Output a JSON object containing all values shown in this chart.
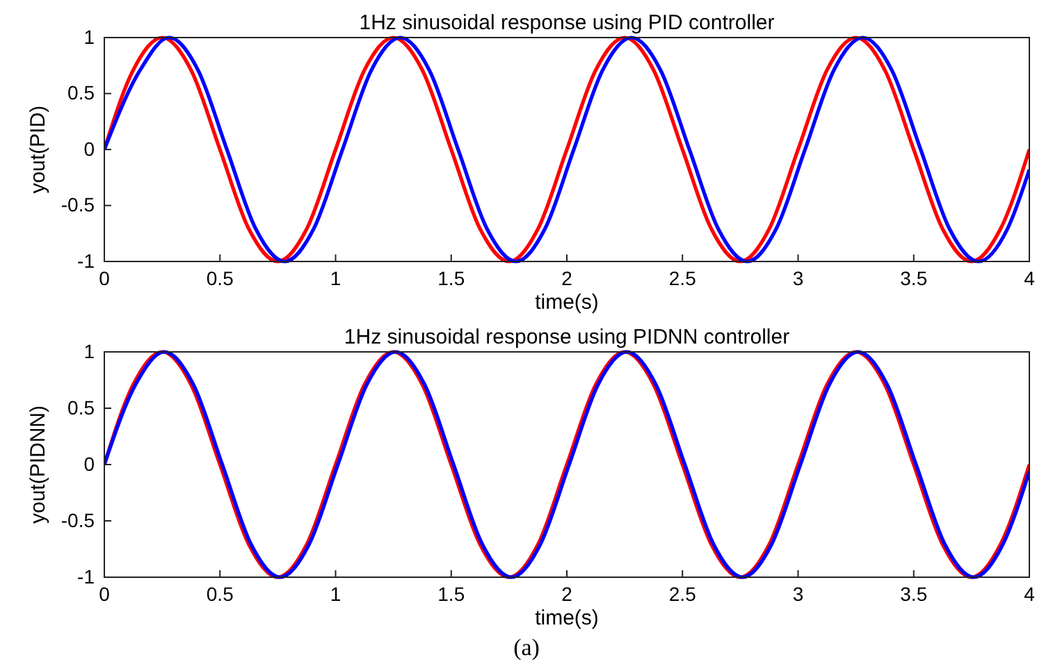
{
  "chart_data": [
    {
      "type": "line",
      "title": "1Hz sinusoidal response using PID controller",
      "xlabel": "time(s)",
      "ylabel": "yout(PID)",
      "xlim": [
        0,
        4
      ],
      "xticks": [
        0,
        0.5,
        1,
        1.5,
        2,
        2.5,
        3,
        3.5,
        4
      ],
      "ylim": [
        -1,
        1
      ],
      "yticks": [
        -1,
        -0.5,
        0,
        0.5,
        1
      ],
      "grid": false,
      "line_style": "solid",
      "marker": "none",
      "series": [
        {
          "color": "#ff0000",
          "x": [
            0,
            0.125,
            0.25,
            0.375,
            0.5,
            0.625,
            0.75,
            0.875,
            1,
            1.125,
            1.25,
            1.375,
            1.5,
            1.625,
            1.75,
            1.875,
            2,
            2.125,
            2.25,
            2.375,
            2.5,
            2.625,
            2.75,
            2.875,
            3,
            3.125,
            3.25,
            3.375,
            3.5,
            3.625,
            3.75,
            3.875,
            4
          ],
          "values": [
            0,
            0.71,
            1,
            0.71,
            0,
            -0.71,
            -1,
            -0.71,
            0,
            0.71,
            1,
            0.71,
            0,
            -0.71,
            -1,
            -0.71,
            0,
            0.71,
            1,
            0.71,
            0,
            -0.71,
            -1,
            -0.71,
            0,
            0.71,
            1,
            0.71,
            0,
            -0.71,
            -1,
            -0.71,
            0
          ]
        },
        {
          "color": "#0000ff",
          "x": [
            0,
            0.155,
            0.28,
            0.405,
            0.53,
            0.655,
            0.78,
            0.905,
            1.03,
            1.155,
            1.28,
            1.405,
            1.53,
            1.655,
            1.78,
            1.905,
            2.03,
            2.155,
            2.28,
            2.405,
            2.53,
            2.655,
            2.78,
            2.905,
            3.03,
            3.155,
            3.28,
            3.405,
            3.53,
            3.655,
            3.78,
            3.905,
            4
          ],
          "values": [
            0,
            0.71,
            1,
            0.71,
            0,
            -0.71,
            -1,
            -0.71,
            0,
            0.71,
            1,
            0.71,
            0,
            -0.71,
            -1,
            -0.71,
            0,
            0.71,
            1,
            0.71,
            0,
            -0.71,
            -1,
            -0.71,
            0,
            0.71,
            1,
            0.71,
            0,
            -0.71,
            -1,
            -0.71,
            -0.18
          ]
        }
      ]
    },
    {
      "type": "line",
      "title": "1Hz sinusoidal response using PIDNN controller",
      "xlabel": "time(s)",
      "ylabel": "yout(PIDNN)",
      "xlim": [
        0,
        4
      ],
      "xticks": [
        0,
        0.5,
        1,
        1.5,
        2,
        2.5,
        3,
        3.5,
        4
      ],
      "ylim": [
        -1,
        1
      ],
      "yticks": [
        -1,
        -0.5,
        0,
        0.5,
        1
      ],
      "grid": false,
      "line_style": "solid",
      "marker": "none",
      "annotations": [
        "(a)"
      ],
      "series": [
        {
          "color": "#ff0000",
          "x": [
            0,
            0.125,
            0.25,
            0.375,
            0.5,
            0.625,
            0.75,
            0.875,
            1,
            1.125,
            1.25,
            1.375,
            1.5,
            1.625,
            1.75,
            1.875,
            2,
            2.125,
            2.25,
            2.375,
            2.5,
            2.625,
            2.75,
            2.875,
            3,
            3.125,
            3.25,
            3.375,
            3.5,
            3.625,
            3.75,
            3.875,
            4
          ],
          "values": [
            0,
            0.71,
            1,
            0.71,
            0,
            -0.71,
            -1,
            -0.71,
            0,
            0.71,
            1,
            0.71,
            0,
            -0.71,
            -1,
            -0.71,
            0,
            0.71,
            1,
            0.71,
            0,
            -0.71,
            -1,
            -0.71,
            0,
            0.71,
            1,
            0.71,
            0,
            -0.71,
            -1,
            -0.71,
            0
          ]
        },
        {
          "color": "#0000ff",
          "x": [
            0,
            0.135,
            0.26,
            0.385,
            0.51,
            0.635,
            0.76,
            0.885,
            1.01,
            1.135,
            1.26,
            1.385,
            1.51,
            1.635,
            1.76,
            1.885,
            2.01,
            2.135,
            2.26,
            2.385,
            2.51,
            2.635,
            2.76,
            2.885,
            3.01,
            3.135,
            3.26,
            3.385,
            3.51,
            3.635,
            3.76,
            3.885,
            4
          ],
          "values": [
            0,
            0.71,
            1,
            0.71,
            0,
            -0.71,
            -1,
            -0.71,
            0,
            0.71,
            1,
            0.71,
            0,
            -0.71,
            -1,
            -0.71,
            0,
            0.71,
            1,
            0.71,
            0,
            -0.71,
            -1,
            -0.71,
            0,
            0.71,
            1,
            0.71,
            0,
            -0.71,
            -1,
            -0.71,
            -0.06
          ]
        }
      ]
    }
  ]
}
